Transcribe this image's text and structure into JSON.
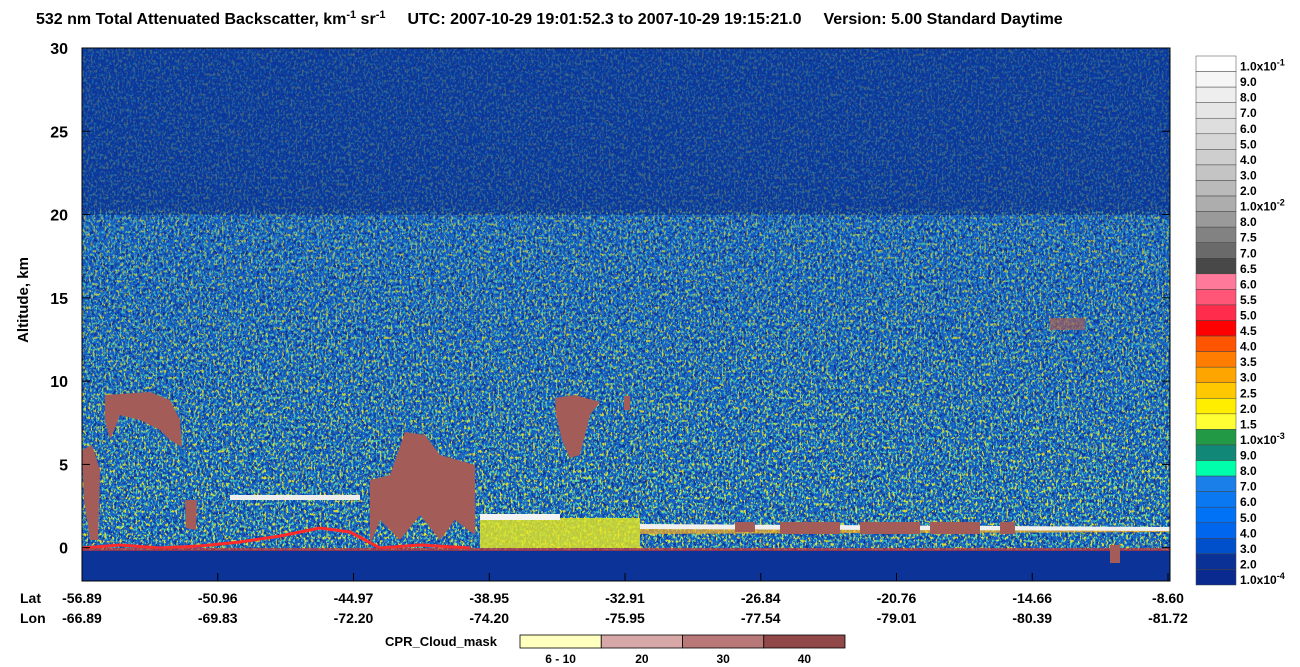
{
  "chart_data": {
    "type": "curtain",
    "title": {
      "prefix": "532 nm Total Attenuated Backscatter, km",
      "sup1": "-1",
      "mid": " sr",
      "sup2": "-1",
      "utc": "UTC:  2007-10-29 19:01:52.3  to  2007-10-29 19:15:21.0",
      "version": "Version: 5.00  Standard  Daytime"
    },
    "y_label": "Altitude, km",
    "ylim": [
      -2,
      30
    ],
    "yticks": [
      0,
      5,
      10,
      15,
      20,
      25,
      30
    ],
    "x_rows": [
      {
        "name": "Lat",
        "labels": [
          "-56.89",
          "-50.96",
          "-44.97",
          "-38.95",
          "-32.91",
          "-26.84",
          "-20.76",
          "-14.66",
          "-8.60"
        ]
      },
      {
        "name": "Lon",
        "labels": [
          "-66.89",
          "-69.83",
          "-72.20",
          "-74.20",
          "-75.95",
          "-77.54",
          "-79.01",
          "-80.39",
          "-81.72"
        ]
      }
    ],
    "colorbar": [
      {
        "text": "1.0x10",
        "sup": "-1",
        "color": "#ffffff"
      },
      {
        "text": "9.0",
        "color": "#f6f6f6"
      },
      {
        "text": "8.0",
        "color": "#eeeeee"
      },
      {
        "text": "7.0",
        "color": "#e6e6e6"
      },
      {
        "text": "6.0",
        "color": "#dedede"
      },
      {
        "text": "5.0",
        "color": "#d6d6d6"
      },
      {
        "text": "4.0",
        "color": "#cecece"
      },
      {
        "text": "3.0",
        "color": "#c4c4c4"
      },
      {
        "text": "2.0",
        "color": "#bababa"
      },
      {
        "text": "1.0x10",
        "sup": "-2",
        "color": "#adadad"
      },
      {
        "text": "8.0",
        "color": "#9a9a9a"
      },
      {
        "text": "7.5",
        "color": "#828282"
      },
      {
        "text": "7.0",
        "color": "#6a6a6a"
      },
      {
        "text": "6.5",
        "color": "#484848"
      },
      {
        "text": "6.0",
        "color": "#ff7a9a"
      },
      {
        "text": "5.5",
        "color": "#ff5577"
      },
      {
        "text": "5.0",
        "color": "#ff2c4c"
      },
      {
        "text": "4.5",
        "color": "#ff0000"
      },
      {
        "text": "4.0",
        "color": "#ff5500"
      },
      {
        "text": "3.5",
        "color": "#ff7d00"
      },
      {
        "text": "3.0",
        "color": "#ffa500"
      },
      {
        "text": "2.5",
        "color": "#ffc800"
      },
      {
        "text": "2.0",
        "color": "#ffee00"
      },
      {
        "text": "1.5",
        "color": "#ffff33"
      },
      {
        "text": "1.0x10",
        "sup": "-3",
        "color": "#229944"
      },
      {
        "text": "9.0",
        "color": "#118877"
      },
      {
        "text": "8.0",
        "color": "#00ffaa"
      },
      {
        "text": "7.0",
        "color": "#1a7fe8"
      },
      {
        "text": "6.0",
        "color": "#0a78f0"
      },
      {
        "text": "5.0",
        "color": "#0072f6"
      },
      {
        "text": "4.0",
        "color": "#0066ee"
      },
      {
        "text": "3.0",
        "color": "#0050cc"
      },
      {
        "text": "2.0",
        "color": "#0a3296"
      },
      {
        "text": "1.0x10",
        "sup": "-4",
        "color": "#0a2a90"
      }
    ],
    "cpr_title": "CPR_Cloud_mask",
    "cpr": [
      {
        "label": "6 - 10",
        "color": "#ffffc0"
      },
      {
        "label": "20",
        "color": "#d8a8a8"
      },
      {
        "label": "30",
        "color": "#b87878"
      },
      {
        "label": "40",
        "color": "#904848"
      }
    ]
  }
}
